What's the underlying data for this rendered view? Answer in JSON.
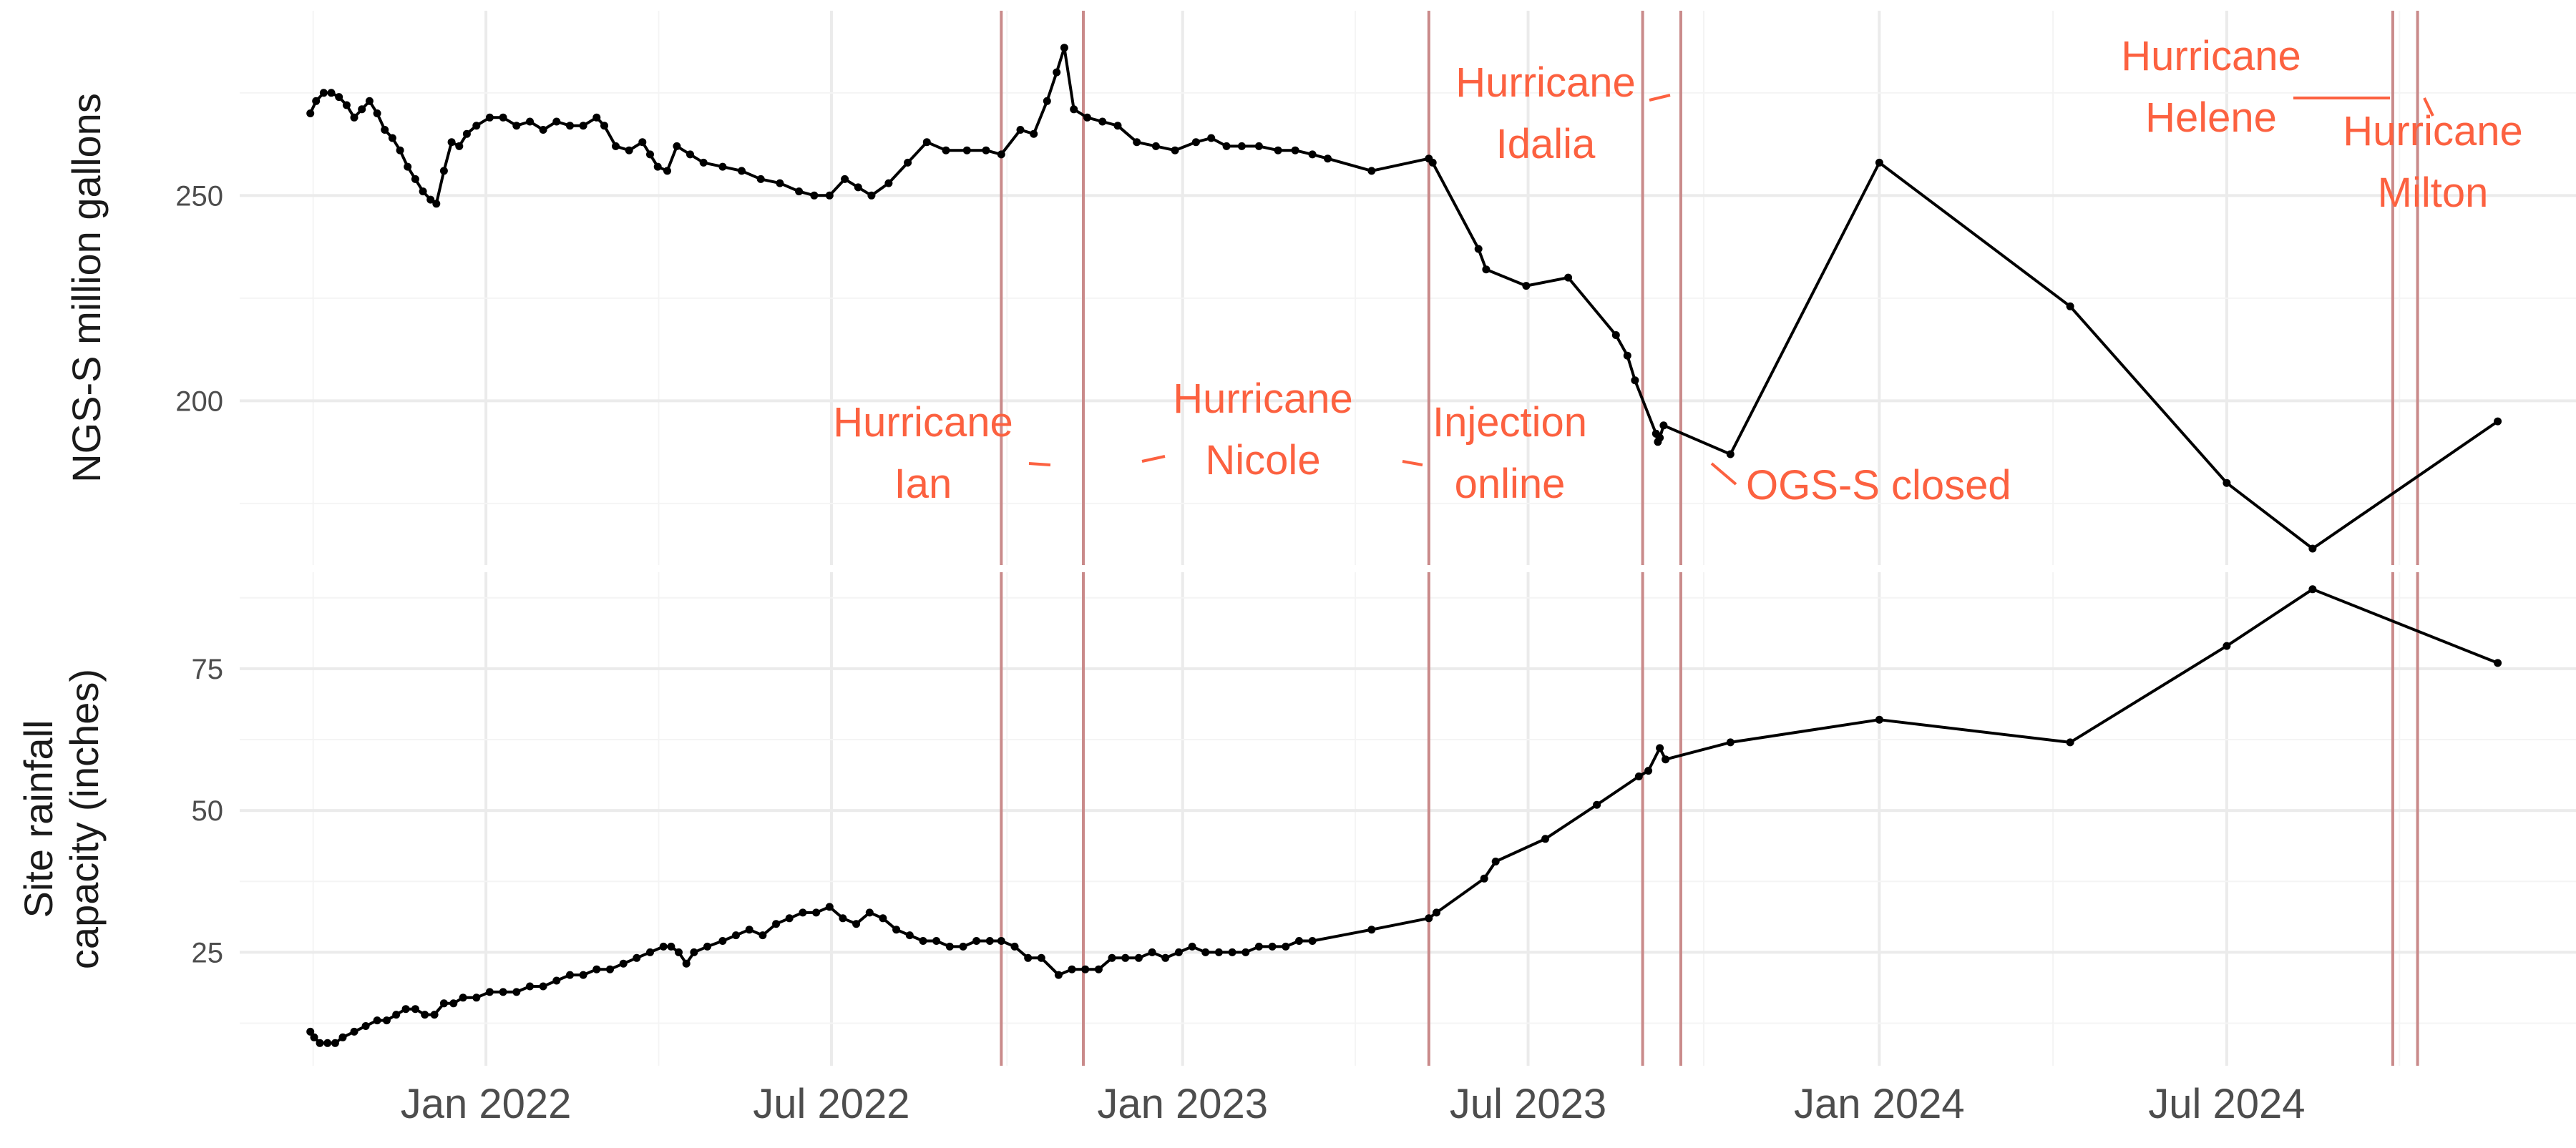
{
  "chart_data": {
    "type": "line",
    "x_axis": {
      "tick_values": [
        "2022-01-01",
        "2022-07-01",
        "2023-01-01",
        "2023-07-01",
        "2024-01-01",
        "2024-07-01"
      ],
      "tick_labels": [
        "Jan 2022",
        "Jul 2022",
        "Jan 2023",
        "Jul 2023",
        "Jan 2024",
        "Jul 2024"
      ],
      "range": [
        "2021-08-25",
        "2024-12-31"
      ]
    },
    "grid": true,
    "panels": [
      {
        "ylabel": [
          "NGS-S million gallons"
        ],
        "ylim": [
          160,
          295
        ],
        "y_ticks": [
          250,
          200
        ],
        "series_values": [
          [
            "2021-10-01",
            270
          ],
          [
            "2021-10-04",
            273
          ],
          [
            "2021-10-08",
            275
          ],
          [
            "2021-10-12",
            275
          ],
          [
            "2021-10-16",
            274
          ],
          [
            "2021-10-20",
            272
          ],
          [
            "2021-10-24",
            269
          ],
          [
            "2021-10-28",
            271
          ],
          [
            "2021-11-01",
            273
          ],
          [
            "2021-11-05",
            270
          ],
          [
            "2021-11-09",
            266
          ],
          [
            "2021-11-13",
            264
          ],
          [
            "2021-11-17",
            261
          ],
          [
            "2021-11-21",
            257
          ],
          [
            "2021-11-25",
            254
          ],
          [
            "2021-11-29",
            251
          ],
          [
            "2021-12-03",
            249
          ],
          [
            "2021-12-06",
            248
          ],
          [
            "2021-12-10",
            256
          ],
          [
            "2021-12-14",
            263
          ],
          [
            "2021-12-18",
            262
          ],
          [
            "2021-12-22",
            265
          ],
          [
            "2021-12-27",
            267
          ],
          [
            "2022-01-03",
            269
          ],
          [
            "2022-01-10",
            269
          ],
          [
            "2022-01-17",
            267
          ],
          [
            "2022-01-24",
            268
          ],
          [
            "2022-01-31",
            266
          ],
          [
            "2022-02-07",
            268
          ],
          [
            "2022-02-14",
            267
          ],
          [
            "2022-02-21",
            267
          ],
          [
            "2022-02-28",
            269
          ],
          [
            "2022-03-04",
            267
          ],
          [
            "2022-03-10",
            262
          ],
          [
            "2022-03-17",
            261
          ],
          [
            "2022-03-24",
            263
          ],
          [
            "2022-03-28",
            260
          ],
          [
            "2022-04-01",
            257
          ],
          [
            "2022-04-06",
            256
          ],
          [
            "2022-04-11",
            262
          ],
          [
            "2022-04-18",
            260
          ],
          [
            "2022-04-25",
            258
          ],
          [
            "2022-05-05",
            257
          ],
          [
            "2022-05-15",
            256
          ],
          [
            "2022-05-25",
            254
          ],
          [
            "2022-06-04",
            253
          ],
          [
            "2022-06-14",
            251
          ],
          [
            "2022-06-22",
            250
          ],
          [
            "2022-06-30",
            250
          ],
          [
            "2022-07-08",
            254
          ],
          [
            "2022-07-15",
            252
          ],
          [
            "2022-07-22",
            250
          ],
          [
            "2022-07-31",
            253
          ],
          [
            "2022-08-10",
            258
          ],
          [
            "2022-08-20",
            263
          ],
          [
            "2022-08-30",
            261
          ],
          [
            "2022-09-10",
            261
          ],
          [
            "2022-09-20",
            261
          ],
          [
            "2022-09-28",
            260
          ],
          [
            "2022-10-08",
            266
          ],
          [
            "2022-10-15",
            265
          ],
          [
            "2022-10-22",
            273
          ],
          [
            "2022-10-27",
            280
          ],
          [
            "2022-10-31",
            286
          ],
          [
            "2022-11-05",
            271
          ],
          [
            "2022-11-12",
            269
          ],
          [
            "2022-11-20",
            268
          ],
          [
            "2022-11-28",
            267
          ],
          [
            "2022-12-08",
            263
          ],
          [
            "2022-12-18",
            262
          ],
          [
            "2022-12-28",
            261
          ],
          [
            "2023-01-08",
            263
          ],
          [
            "2023-01-16",
            264
          ],
          [
            "2023-01-24",
            262
          ],
          [
            "2023-02-01",
            262
          ],
          [
            "2023-02-10",
            262
          ],
          [
            "2023-02-20",
            261
          ],
          [
            "2023-03-01",
            261
          ],
          [
            "2023-03-10",
            260
          ],
          [
            "2023-03-18",
            259
          ],
          [
            "2023-04-10",
            256
          ],
          [
            "2023-05-10",
            259
          ],
          [
            "2023-05-12",
            258
          ],
          [
            "2023-06-05",
            237
          ],
          [
            "2023-06-09",
            232
          ],
          [
            "2023-06-30",
            228
          ],
          [
            "2023-07-22",
            230
          ],
          [
            "2023-08-16",
            216
          ],
          [
            "2023-08-22",
            211
          ],
          [
            "2023-08-26",
            205
          ],
          [
            "2023-09-06",
            192
          ],
          [
            "2023-09-07",
            190
          ],
          [
            "2023-09-08",
            191
          ],
          [
            "2023-09-10",
            194
          ],
          [
            "2023-10-15",
            187
          ],
          [
            "2024-01-01",
            258
          ],
          [
            "2024-04-10",
            223
          ],
          [
            "2024-07-01",
            180
          ],
          [
            "2024-08-15",
            164
          ],
          [
            "2024-11-20",
            195
          ]
        ]
      },
      {
        "ylabel": [
          "Site rainfall",
          "capacity (inches)"
        ],
        "ylim": [
          5,
          92
        ],
        "y_ticks": [
          75,
          50,
          25
        ],
        "series_values": [
          [
            "2021-10-01",
            11
          ],
          [
            "2021-10-03",
            10
          ],
          [
            "2021-10-06",
            9
          ],
          [
            "2021-10-10",
            9
          ],
          [
            "2021-10-14",
            9
          ],
          [
            "2021-10-18",
            10
          ],
          [
            "2021-10-24",
            11
          ],
          [
            "2021-10-30",
            12
          ],
          [
            "2021-11-05",
            13
          ],
          [
            "2021-11-10",
            13
          ],
          [
            "2021-11-15",
            14
          ],
          [
            "2021-11-20",
            15
          ],
          [
            "2021-11-25",
            15
          ],
          [
            "2021-11-30",
            14
          ],
          [
            "2021-12-05",
            14
          ],
          [
            "2021-12-10",
            16
          ],
          [
            "2021-12-15",
            16
          ],
          [
            "2021-12-20",
            17
          ],
          [
            "2021-12-27",
            17
          ],
          [
            "2022-01-03",
            18
          ],
          [
            "2022-01-10",
            18
          ],
          [
            "2022-01-17",
            18
          ],
          [
            "2022-01-24",
            19
          ],
          [
            "2022-01-31",
            19
          ],
          [
            "2022-02-07",
            20
          ],
          [
            "2022-02-14",
            21
          ],
          [
            "2022-02-21",
            21
          ],
          [
            "2022-02-28",
            22
          ],
          [
            "2022-03-07",
            22
          ],
          [
            "2022-03-14",
            23
          ],
          [
            "2022-03-21",
            24
          ],
          [
            "2022-03-28",
            25
          ],
          [
            "2022-04-04",
            26
          ],
          [
            "2022-04-08",
            26
          ],
          [
            "2022-04-12",
            25
          ],
          [
            "2022-04-16",
            23
          ],
          [
            "2022-04-20",
            25
          ],
          [
            "2022-04-27",
            26
          ],
          [
            "2022-05-05",
            27
          ],
          [
            "2022-05-12",
            28
          ],
          [
            "2022-05-19",
            29
          ],
          [
            "2022-05-26",
            28
          ],
          [
            "2022-06-02",
            30
          ],
          [
            "2022-06-09",
            31
          ],
          [
            "2022-06-16",
            32
          ],
          [
            "2022-06-23",
            32
          ],
          [
            "2022-06-30",
            33
          ],
          [
            "2022-07-07",
            31
          ],
          [
            "2022-07-14",
            30
          ],
          [
            "2022-07-21",
            32
          ],
          [
            "2022-07-28",
            31
          ],
          [
            "2022-08-04",
            29
          ],
          [
            "2022-08-11",
            28
          ],
          [
            "2022-08-18",
            27
          ],
          [
            "2022-08-25",
            27
          ],
          [
            "2022-09-01",
            26
          ],
          [
            "2022-09-08",
            26
          ],
          [
            "2022-09-15",
            27
          ],
          [
            "2022-09-22",
            27
          ],
          [
            "2022-09-28",
            27
          ],
          [
            "2022-10-05",
            26
          ],
          [
            "2022-10-12",
            24
          ],
          [
            "2022-10-19",
            24
          ],
          [
            "2022-10-28",
            21
          ],
          [
            "2022-11-04",
            22
          ],
          [
            "2022-11-11",
            22
          ],
          [
            "2022-11-18",
            22
          ],
          [
            "2022-11-25",
            24
          ],
          [
            "2022-12-02",
            24
          ],
          [
            "2022-12-09",
            24
          ],
          [
            "2022-12-16",
            25
          ],
          [
            "2022-12-23",
            24
          ],
          [
            "2022-12-30",
            25
          ],
          [
            "2023-01-06",
            26
          ],
          [
            "2023-01-13",
            25
          ],
          [
            "2023-01-20",
            25
          ],
          [
            "2023-01-27",
            25
          ],
          [
            "2023-02-03",
            25
          ],
          [
            "2023-02-10",
            26
          ],
          [
            "2023-02-17",
            26
          ],
          [
            "2023-02-24",
            26
          ],
          [
            "2023-03-03",
            27
          ],
          [
            "2023-03-10",
            27
          ],
          [
            "2023-04-10",
            29
          ],
          [
            "2023-05-10",
            31
          ],
          [
            "2023-05-14",
            32
          ],
          [
            "2023-06-08",
            38
          ],
          [
            "2023-06-14",
            41
          ],
          [
            "2023-07-10",
            45
          ],
          [
            "2023-08-06",
            51
          ],
          [
            "2023-08-28",
            56
          ],
          [
            "2023-09-02",
            57
          ],
          [
            "2023-09-08",
            61
          ],
          [
            "2023-09-11",
            59
          ],
          [
            "2023-10-15",
            62
          ],
          [
            "2024-01-01",
            66
          ],
          [
            "2024-04-10",
            62
          ],
          [
            "2024-07-01",
            79
          ],
          [
            "2024-08-15",
            89
          ],
          [
            "2024-11-20",
            76
          ]
        ]
      }
    ],
    "events": [
      {
        "date": "2022-09-28",
        "label": [
          "Hurricane",
          "Ian"
        ]
      },
      {
        "date": "2022-11-10",
        "label": [
          "Hurricane",
          "Nicole"
        ]
      },
      {
        "date": "2023-05-10",
        "label": [
          "Injection",
          "online"
        ]
      },
      {
        "date": "2023-08-30",
        "label": [
          "Hurricane",
          "Idalia"
        ]
      },
      {
        "date": "2023-09-19",
        "label": [
          "OGS-S closed"
        ]
      },
      {
        "date": "2024-09-26",
        "label": [
          "Hurricane",
          "Helene"
        ]
      },
      {
        "date": "2024-10-09",
        "label": [
          "Hurricane",
          "Milton"
        ]
      }
    ],
    "colors": {
      "line": "#000000",
      "event_line": "#c98a8a",
      "annotation": "#fc6140",
      "grid_major": "#ebebeb",
      "grid_minor": "#f4f4f4"
    }
  }
}
